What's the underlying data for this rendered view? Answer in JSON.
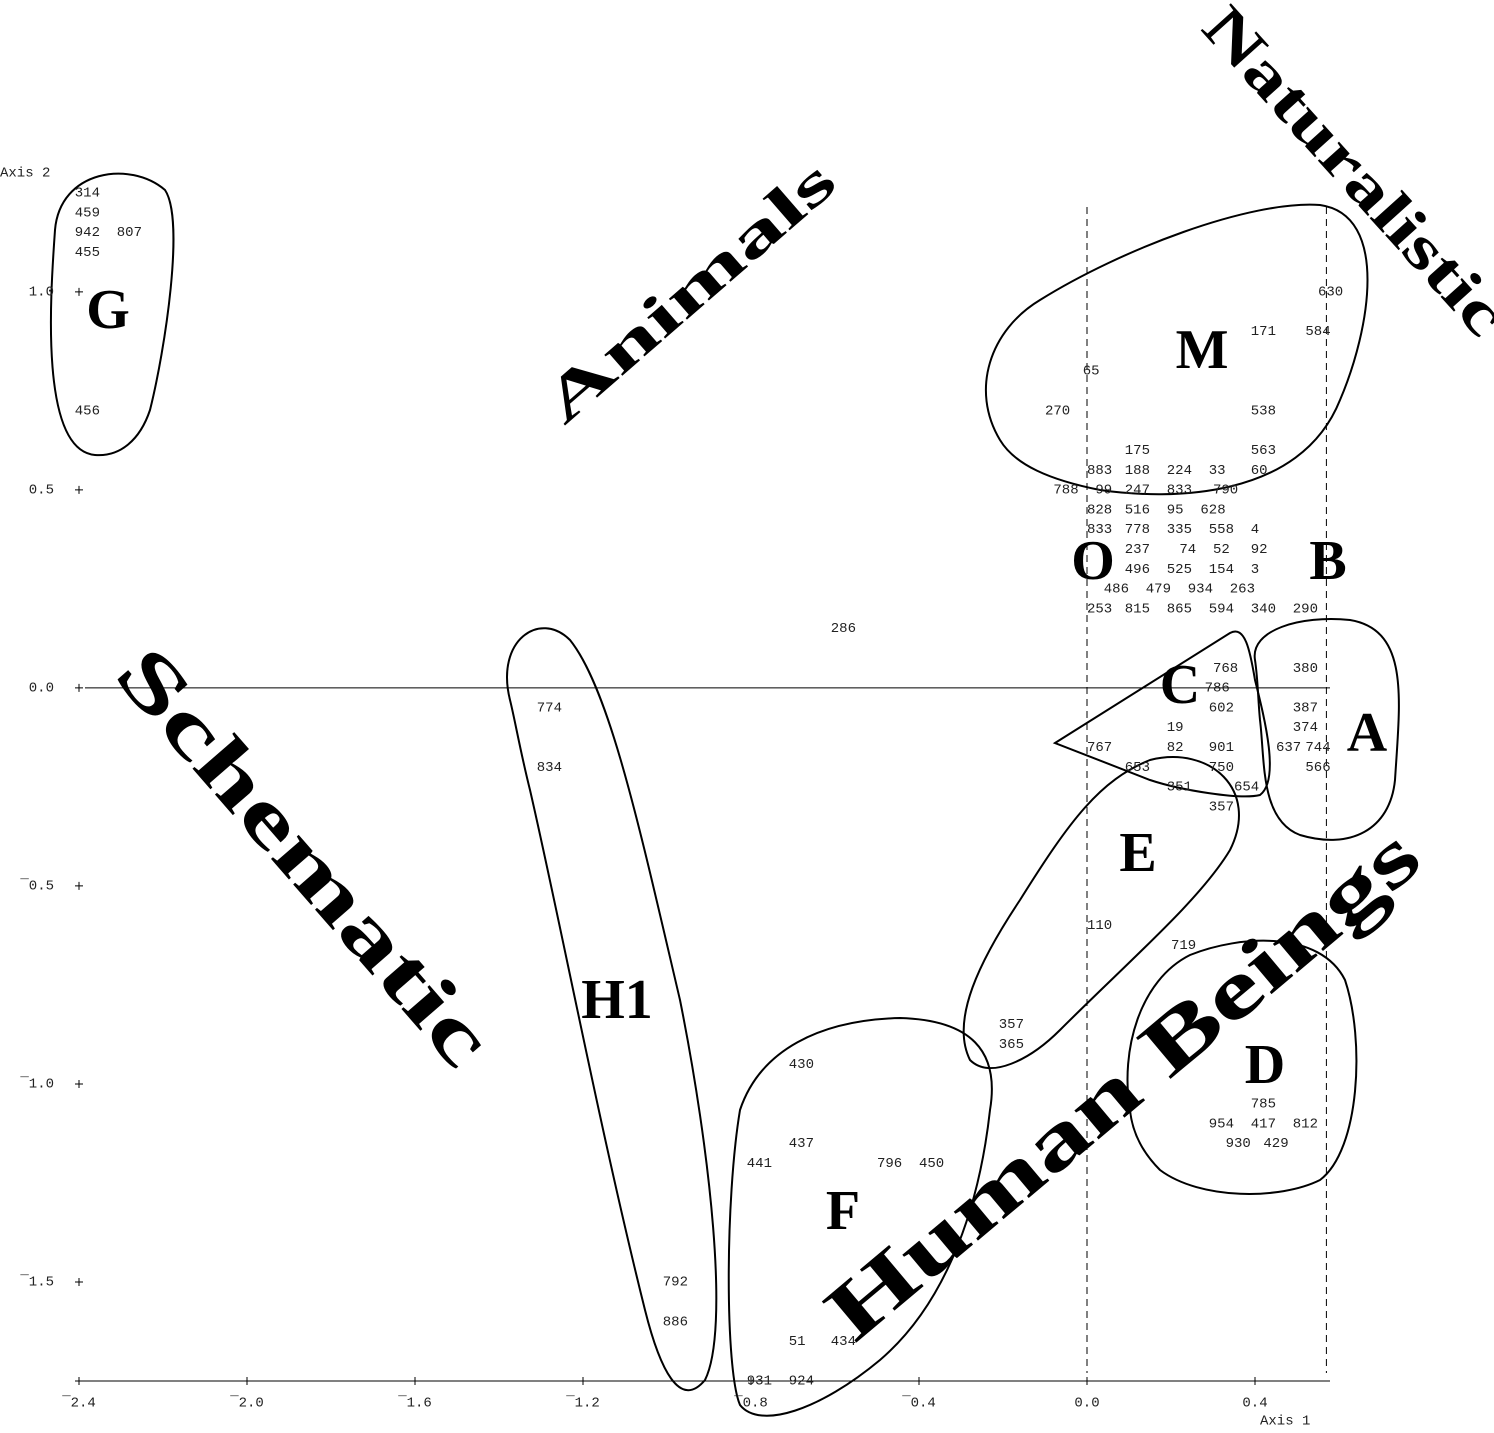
{
  "chart_data": {
    "type": "scatter",
    "x_label": "Axis 1",
    "y_label": "Axis 2",
    "xlim": [
      -2.4,
      0.6
    ],
    "ylim": [
      -1.75,
      1.3
    ],
    "xticks": [
      {
        "value": -2.4,
        "label": "¯2.4"
      },
      {
        "value": -2.0,
        "label": "¯2.0"
      },
      {
        "value": -1.6,
        "label": "¯1.6"
      },
      {
        "value": -1.2,
        "label": "¯1.2"
      },
      {
        "value": -0.8,
        "label": "¯0.8"
      },
      {
        "value": -0.4,
        "label": "¯0.4"
      },
      {
        "value": 0,
        "label": "0.0"
      },
      {
        "value": 0.4,
        "label": "0.4"
      }
    ],
    "yticks": [
      {
        "value": 1,
        "label": "1.0"
      },
      {
        "value": 0.5,
        "label": "0.5"
      },
      {
        "value": 0,
        "label": "0.0"
      },
      {
        "value": -0.5,
        "label": "¯0.5"
      },
      {
        "value": -1,
        "label": "¯1.0"
      },
      {
        "value": -1.5,
        "label": "¯1.5"
      }
    ],
    "hlines": [
      0
    ],
    "vlines": [
      0,
      0.57
    ],
    "point_labels": [
      "314",
      "459",
      "942",
      "807",
      "455",
      "456",
      "630",
      "171",
      "584",
      "65",
      "270",
      "538",
      "175",
      "563",
      "883",
      "188",
      "224",
      "33",
      "60",
      "788",
      "99",
      "247",
      "833",
      "790",
      "828",
      "516",
      "95",
      "628",
      "833",
      "778",
      "335",
      "558",
      "4",
      "237",
      "74",
      "52",
      "92",
      "496",
      "525",
      "154",
      "3",
      "486",
      "479",
      "934",
      "263",
      "253",
      "815",
      "865",
      "594",
      "340",
      "290",
      "286",
      "768",
      "786",
      "602",
      "19",
      "82",
      "901",
      "750",
      "767",
      "653",
      "351",
      "654",
      "357",
      "380",
      "387",
      "374",
      "637",
      "744",
      "566",
      "774",
      "834",
      "792",
      "886",
      "110",
      "719",
      "357",
      "365",
      "785",
      "954",
      "417",
      "812",
      "930",
      "429",
      "430",
      "437",
      "441",
      "796",
      "450",
      "51",
      "434",
      "931",
      "924"
    ],
    "x": [
      -2.38,
      -2.38,
      -2.38,
      -2.28,
      -2.38,
      -2.38,
      0.58,
      0.42,
      0.55,
      0.01,
      -0.07,
      0.42,
      0.12,
      0.42,
      0.03,
      0.12,
      0.22,
      0.31,
      0.41,
      -0.05,
      0.04,
      0.12,
      0.22,
      0.33,
      0.03,
      0.12,
      0.21,
      0.3,
      0.03,
      0.12,
      0.22,
      0.32,
      0.4,
      0.12,
      0.24,
      0.32,
      0.41,
      0.12,
      0.22,
      0.32,
      0.4,
      0.07,
      0.17,
      0.27,
      0.37,
      0.03,
      0.12,
      0.22,
      0.32,
      0.42,
      0.52,
      -0.58,
      0.33,
      0.31,
      0.32,
      0.21,
      0.21,
      0.32,
      0.32,
      0.03,
      0.12,
      0.22,
      0.38,
      0.32,
      0.52,
      0.52,
      0.52,
      0.48,
      0.55,
      0.55,
      -1.28,
      -1.28,
      -0.98,
      -0.98,
      0.03,
      0.23,
      -0.18,
      -0.18,
      0.42,
      0.32,
      0.42,
      0.52,
      0.36,
      0.45,
      -0.68,
      -0.68,
      -0.78,
      -0.47,
      -0.37,
      -0.69,
      -0.58,
      -0.78,
      -0.68
    ],
    "values": [
      1.25,
      1.2,
      1.15,
      1.15,
      1.1,
      0.7,
      1.0,
      0.9,
      0.9,
      0.8,
      0.7,
      0.7,
      0.6,
      0.6,
      0.55,
      0.55,
      0.55,
      0.55,
      0.55,
      0.5,
      0.5,
      0.5,
      0.5,
      0.5,
      0.45,
      0.45,
      0.45,
      0.45,
      0.4,
      0.4,
      0.4,
      0.4,
      0.4,
      0.35,
      0.35,
      0.35,
      0.35,
      0.3,
      0.3,
      0.3,
      0.3,
      0.25,
      0.25,
      0.25,
      0.25,
      0.2,
      0.2,
      0.2,
      0.2,
      0.2,
      0.2,
      0.15,
      0.05,
      0.0,
      -0.05,
      -0.1,
      -0.15,
      -0.15,
      -0.2,
      -0.15,
      -0.2,
      -0.25,
      -0.25,
      -0.3,
      0.05,
      -0.05,
      -0.1,
      -0.15,
      -0.15,
      -0.2,
      -0.05,
      -0.2,
      -1.5,
      -1.6,
      -0.6,
      -0.65,
      -0.85,
      -0.9,
      -1.05,
      -1.1,
      -1.1,
      -1.1,
      -1.15,
      -1.15,
      -0.95,
      -1.15,
      -1.2,
      -1.2,
      -1.2,
      -1.65,
      -1.65,
      -1.75,
      -1.75
    ],
    "cluster_labels": [
      "G",
      "M",
      "O",
      "B",
      "C",
      "A",
      "E",
      "H1",
      "D",
      "F"
    ],
    "annotations": [
      "Animals",
      "Naturalistic",
      "Schematic",
      "Human Beings"
    ]
  }
}
